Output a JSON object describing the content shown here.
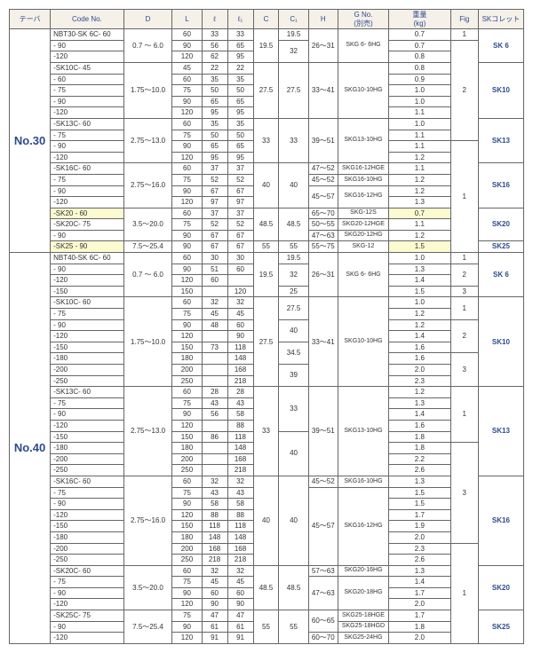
{
  "hdr": [
    "テーバ",
    "Code No.",
    "D",
    "L",
    "ℓ",
    "ℓ₁",
    "C",
    "C₁",
    "H",
    "G No.\n(別売)",
    "重量\n(kg)",
    "Fig",
    "SKコレット"
  ],
  "t30": "No.30",
  "t40": "No.40",
  "r": [
    [
      "NBT30-SK 6C- 60",
      "0.7 ～ 6.0",
      "60",
      "33",
      "33",
      "19.5",
      "19.5",
      "26～31",
      "SKG 6- 6HG",
      "0.7",
      "1",
      "SK 6"
    ],
    [
      "- 90",
      "",
      "90",
      "56",
      "65",
      "",
      "32",
      "",
      "",
      "0.7",
      "2",
      ""
    ],
    [
      "-120",
      "",
      "120",
      "62",
      "95",
      "",
      "",
      "",
      "",
      "0.8",
      "",
      ""
    ],
    [
      "-SK10C- 45",
      "1.75～10.0",
      "45",
      "22",
      "22",
      "27.5",
      "27.5",
      "33～41",
      "SKG10-10HG",
      "0.8",
      "",
      "SK10"
    ],
    [
      "- 60",
      "",
      "60",
      "35",
      "35",
      "",
      "",
      "",
      "",
      "0.9",
      "",
      ""
    ],
    [
      "- 75",
      "",
      "75",
      "50",
      "50",
      "",
      "",
      "",
      "",
      "1.0",
      "",
      ""
    ],
    [
      "- 90",
      "",
      "90",
      "65",
      "65",
      "",
      "",
      "",
      "",
      "1.0",
      "",
      ""
    ],
    [
      "-120",
      "",
      "120",
      "95",
      "95",
      "",
      "",
      "",
      "",
      "1.1",
      "",
      ""
    ],
    [
      "-SK13C- 60",
      "2.75～13.0",
      "60",
      "35",
      "35",
      "33",
      "33",
      "39～51",
      "SKG13-10HG",
      "1.0",
      "",
      "SK13"
    ],
    [
      "- 75",
      "",
      "75",
      "50",
      "50",
      "",
      "",
      "",
      "",
      "1.1",
      "",
      ""
    ],
    [
      "- 90",
      "",
      "90",
      "65",
      "65",
      "",
      "",
      "",
      "",
      "1.1",
      "1",
      ""
    ],
    [
      "-120",
      "",
      "120",
      "95",
      "95",
      "",
      "",
      "",
      "",
      "1.2",
      "",
      ""
    ],
    [
      "-SK16C- 60",
      "2.75～16.0",
      "60",
      "37",
      "37",
      "40",
      "40",
      "47～52",
      "SKG16-12HGE",
      "1.1",
      "",
      "SK16"
    ],
    [
      "- 75",
      "",
      "75",
      "52",
      "52",
      "",
      "",
      "45～52",
      "SKG16-10HG",
      "1.2",
      "",
      ""
    ],
    [
      "- 90",
      "",
      "90",
      "67",
      "67",
      "",
      "",
      "45～57",
      "SKG16-12HG",
      "1.2",
      "",
      ""
    ],
    [
      "-120",
      "",
      "120",
      "97",
      "97",
      "",
      "",
      "",
      "",
      "1.3",
      "",
      ""
    ],
    [
      "-SK20 - 60*",
      "3.5～20.0",
      "60",
      "37",
      "37",
      "48.5",
      "48.5",
      "65～70",
      "SKG-12S",
      "0.7",
      "",
      "SK20"
    ],
    [
      "-SK20C- 75",
      "",
      "75",
      "52",
      "52",
      "",
      "",
      "50～55",
      "SKG20-12HGE",
      "1.1",
      "",
      ""
    ],
    [
      "- 90",
      "",
      "90",
      "67",
      "67",
      "",
      "",
      "47～63",
      "SKG20-12HG",
      "1.2",
      "",
      ""
    ],
    [
      "-SK25 - 90*",
      "7.5～25.4",
      "90",
      "67",
      "67",
      "55",
      "55",
      "55～75",
      "SKG-12",
      "1.5",
      "",
      "SK25"
    ]
  ],
  "r4": [
    [
      "NBT40-SK 6C- 60",
      "0.7 ～ 6.0",
      "60",
      "30",
      "30",
      "19.5",
      "19.5",
      "26～31",
      "SKG 6- 6HG",
      "1.0",
      "1",
      "SK 6"
    ],
    [
      "- 90",
      "",
      "90",
      "51",
      "60",
      "",
      "32",
      "",
      "",
      "1.3",
      "2",
      ""
    ],
    [
      "-120",
      "",
      "120",
      "60",
      "",
      "",
      "",
      "",
      "",
      "1.4",
      "",
      ""
    ],
    [
      "-150",
      "",
      "150",
      "",
      "120",
      "",
      "25",
      "",
      "",
      "1.5",
      "3",
      ""
    ],
    [
      "-SK10C- 60",
      "1.75～10.0",
      "60",
      "32",
      "32",
      "27.5",
      "27.5",
      "33～41",
      "SKG10-10HG",
      "1.0",
      "1",
      "SK10"
    ],
    [
      "- 75",
      "",
      "75",
      "45",
      "45",
      "",
      "",
      "",
      "",
      "1.2",
      "",
      ""
    ],
    [
      "- 90",
      "",
      "90",
      "48",
      "60",
      "",
      "40",
      "",
      "",
      "1.2",
      "2",
      ""
    ],
    [
      "-120",
      "",
      "120",
      "",
      "90",
      "",
      "",
      "",
      "",
      "1.4",
      "",
      ""
    ],
    [
      "-150",
      "",
      "150",
      "73",
      "118",
      "",
      "34.5",
      "",
      "",
      "1.6",
      "",
      ""
    ],
    [
      "-180",
      "",
      "180",
      "",
      "148",
      "",
      "",
      "",
      "",
      "1.6",
      "3",
      ""
    ],
    [
      "-200",
      "",
      "200",
      "",
      "168",
      "",
      "39",
      "",
      "",
      "2.0",
      "",
      ""
    ],
    [
      "-250",
      "",
      "250",
      "",
      "218",
      "",
      "",
      "",
      "",
      "2.3",
      "",
      ""
    ],
    [
      "-SK13C- 60",
      "2.75～13.0",
      "60",
      "28",
      "28",
      "33",
      "33",
      "39～51",
      "SKG13-10HG",
      "1.2",
      "1",
      "SK13"
    ],
    [
      "- 75",
      "",
      "75",
      "43",
      "43",
      "",
      "",
      "",
      "",
      "1.3",
      "",
      ""
    ],
    [
      "- 90",
      "",
      "90",
      "56",
      "58",
      "",
      "",
      "",
      "",
      "1.4",
      "",
      ""
    ],
    [
      "-120",
      "",
      "120",
      "",
      "88",
      "",
      "",
      "",
      "",
      "1.6",
      "",
      ""
    ],
    [
      "-150",
      "",
      "150",
      "86",
      "118",
      "",
      "40",
      "",
      "",
      "1.8",
      "",
      ""
    ],
    [
      "-180",
      "",
      "180",
      "",
      "148",
      "",
      "",
      "",
      "",
      "1.8",
      "3",
      ""
    ],
    [
      "-200",
      "",
      "200",
      "",
      "168",
      "",
      "",
      "",
      "",
      "2.2",
      "",
      ""
    ],
    [
      "-250",
      "",
      "250",
      "",
      "218",
      "",
      "",
      "",
      "",
      "2.6",
      "",
      ""
    ],
    [
      "-SK16C- 60",
      "2.75～16.0",
      "60",
      "32",
      "32",
      "40",
      "40",
      "45～52",
      "SKG16-10HG",
      "1.3",
      "",
      "SK16"
    ],
    [
      "- 75",
      "",
      "75",
      "43",
      "43",
      "",
      "",
      "45～57",
      "SKG16-12HG",
      "1.5",
      "",
      ""
    ],
    [
      "- 90",
      "",
      "90",
      "58",
      "58",
      "",
      "",
      "",
      "",
      "1.5",
      "",
      ""
    ],
    [
      "-120",
      "",
      "120",
      "88",
      "88",
      "",
      "",
      "",
      "",
      "1.7",
      "",
      ""
    ],
    [
      "-150",
      "",
      "150",
      "118",
      "118",
      "",
      "",
      "",
      "",
      "1.9",
      "",
      ""
    ],
    [
      "-180",
      "",
      "180",
      "148",
      "148",
      "",
      "",
      "",
      "",
      "2.0",
      "",
      ""
    ],
    [
      "-200",
      "",
      "200",
      "168",
      "168",
      "",
      "",
      "",
      "",
      "2.3",
      "1",
      ""
    ],
    [
      "-250",
      "",
      "250",
      "218",
      "218",
      "",
      "",
      "",
      "",
      "2.6",
      "",
      ""
    ],
    [
      "-SK20C- 60",
      "3.5～20.0",
      "60",
      "32",
      "32",
      "48.5",
      "48.5",
      "57～63",
      "SKG20-16HG",
      "1.3",
      "",
      "SK20"
    ],
    [
      "- 75",
      "",
      "75",
      "45",
      "45",
      "",
      "",
      "47～63",
      "SKG20-18HG",
      "1.4",
      "",
      ""
    ],
    [
      "- 90",
      "",
      "90",
      "60",
      "60",
      "",
      "",
      "",
      "",
      "1.7",
      "",
      ""
    ],
    [
      "-120",
      "",
      "120",
      "90",
      "90",
      "",
      "",
      "",
      "",
      "2.0",
      "",
      ""
    ],
    [
      "-SK25C- 75",
      "7.5～25.4",
      "75",
      "47",
      "47",
      "55",
      "55",
      "60～65",
      "SKG25-18HGE",
      "1.7",
      "",
      "SK25"
    ],
    [
      "- 90",
      "",
      "90",
      "61",
      "61",
      "",
      "",
      "",
      "SKG25-18HGD",
      "1.8",
      "",
      ""
    ],
    [
      "-120",
      "",
      "120",
      "91",
      "91",
      "",
      "",
      "60～70",
      "SKG25-24HG",
      "2.0",
      "",
      ""
    ]
  ]
}
